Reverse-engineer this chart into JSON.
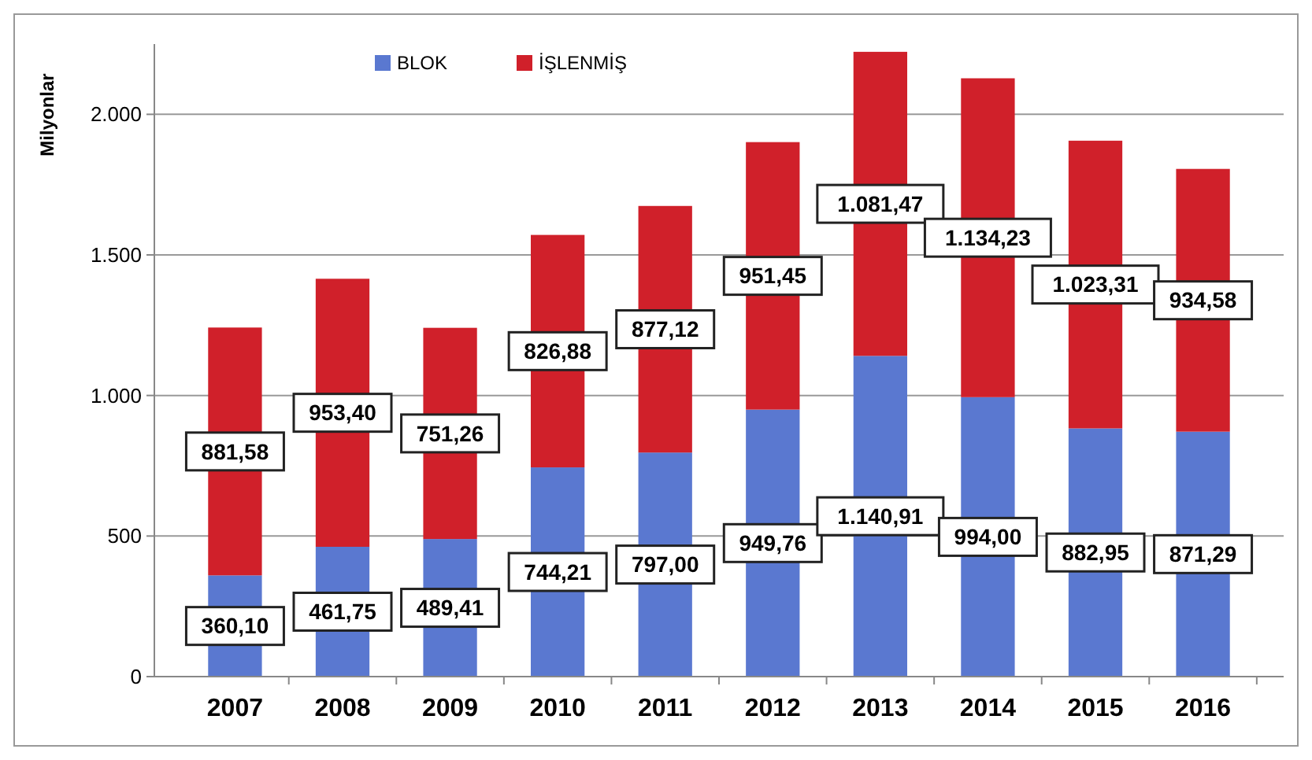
{
  "chart_data": {
    "type": "bar",
    "stacked": true,
    "ylabel": "Milyonlar",
    "categories": [
      "2007",
      "2008",
      "2009",
      "2010",
      "2011",
      "2012",
      "2013",
      "2014",
      "2015",
      "2016"
    ],
    "series": [
      {
        "name": "BLOK",
        "color": "#5a78d0",
        "values": [
          360.1,
          461.75,
          489.41,
          744.21,
          797.0,
          949.76,
          1140.91,
          994.0,
          882.95,
          871.29
        ],
        "value_labels": [
          "360,10",
          "461,75",
          "489,41",
          "744,21",
          "797,00",
          "949,76",
          "1.140,91",
          "994,00",
          "882,95",
          "871,29"
        ]
      },
      {
        "name": "İŞLENMİŞ",
        "color": "#d0202a",
        "values": [
          881.58,
          953.4,
          751.26,
          826.88,
          877.12,
          951.45,
          1081.47,
          1134.23,
          1023.31,
          934.58
        ],
        "value_labels": [
          "881,58",
          "953,40",
          "751,26",
          "826,88",
          "877,12",
          "951,45",
          "1.081,47",
          "1.134,23",
          "1.023,31",
          "934,58"
        ]
      }
    ],
    "ylim": [
      0,
      2250
    ],
    "yticks": [
      0,
      500,
      {
        "value": 1000,
        "label": "1.000"
      },
      {
        "value": 1500,
        "label": "1.500"
      },
      {
        "value": 2000,
        "label": "2.000"
      }
    ],
    "grid": "y",
    "legend": "top left"
  }
}
